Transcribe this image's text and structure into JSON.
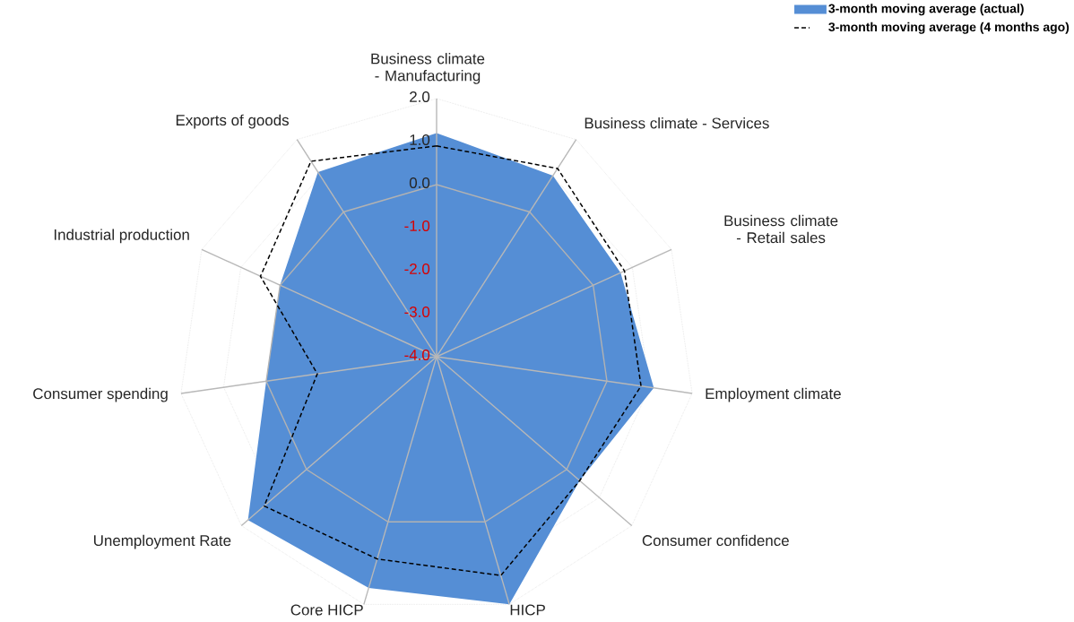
{
  "chart_data": {
    "type": "radar",
    "categories": [
      "Business climate - Manufacturing",
      "Business climate - Services",
      "Business climate - Retail sales",
      "Employment climate",
      "Consumer confidence",
      "HICP",
      "Core HICP",
      "Unemployment Rate",
      "Consumer spending",
      "Industrial production",
      "Exports of goods"
    ],
    "series": [
      {
        "name": "3-month moving average (actual)",
        "color": "#558ed5",
        "values": [
          1.2,
          1.0,
          0.7,
          1.1,
          0.4,
          2.0,
          1.6,
          1.8,
          0.0,
          0.0,
          1.1
        ]
      },
      {
        "name": "3-month moving average (4 months ago)",
        "line_style": "dashed",
        "color": "#000000",
        "values": [
          0.9,
          1.2,
          0.8,
          0.8,
          0.4,
          1.3,
          0.9,
          1.3,
          -1.2,
          0.5,
          1.4
        ]
      }
    ],
    "ylim": [
      -4,
      2
    ],
    "yticks": [
      {
        "value": -4,
        "label": "-4.0"
      },
      {
        "value": -3,
        "label": "-3.0"
      },
      {
        "value": -2,
        "label": "-2.0"
      },
      {
        "value": -1,
        "label": "-1.0"
      },
      {
        "value": 0,
        "label": "0.0"
      },
      {
        "value": 1,
        "label": "1.0"
      },
      {
        "value": 2,
        "label": "2.0"
      }
    ],
    "grid": true,
    "legend": "top right",
    "marker": "none"
  }
}
